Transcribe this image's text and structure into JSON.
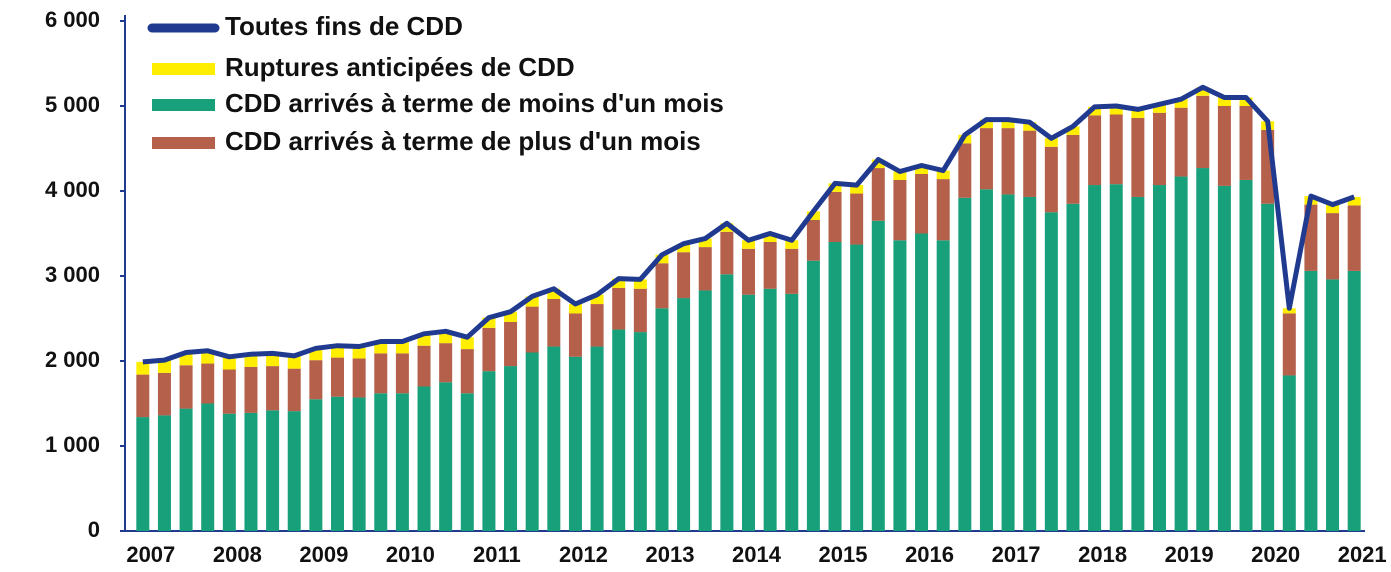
{
  "chart_data": {
    "type": "bar",
    "stacked": true,
    "categories": [
      "2007",
      null,
      null,
      null,
      "2008",
      null,
      null,
      null,
      "2009",
      null,
      null,
      null,
      "2010",
      null,
      null,
      null,
      "2011",
      null,
      null,
      null,
      "2012",
      null,
      null,
      null,
      "2013",
      null,
      null,
      null,
      "2014",
      null,
      null,
      null,
      "2015",
      null,
      null,
      null,
      "2016",
      null,
      null,
      null,
      "2017",
      null,
      null,
      null,
      "2018",
      null,
      null,
      null,
      "2019",
      null,
      null,
      null,
      "2020",
      null,
      null,
      null,
      "2021"
    ],
    "series": [
      {
        "name": "Toutes fins de CDD",
        "type": "line",
        "color": "#1f3a8f",
        "values": [
          1990,
          2010,
          2100,
          2120,
          2050,
          2080,
          2090,
          2060,
          2150,
          2180,
          2170,
          2230,
          2230,
          2320,
          2350,
          2280,
          2510,
          2580,
          2760,
          2850,
          2670,
          2780,
          2970,
          2960,
          3250,
          3380,
          3440,
          3620,
          3420,
          3500,
          3420,
          3760,
          4090,
          4070,
          4370,
          4230,
          4300,
          4240,
          4660,
          4840,
          4840,
          4810,
          4620,
          4760,
          4990,
          5000,
          4960,
          5020,
          5080,
          5220,
          5100,
          5100,
          4820,
          2620,
          3940,
          3840,
          3930
        ]
      },
      {
        "name": "Ruptures anticipées de CDD",
        "type": "bar",
        "color": "#ffee00",
        "values": [
          150,
          150,
          150,
          150,
          150,
          150,
          150,
          150,
          140,
          140,
          140,
          140,
          140,
          140,
          140,
          140,
          120,
          120,
          120,
          120,
          110,
          110,
          110,
          110,
          100,
          100,
          100,
          100,
          100,
          100,
          100,
          100,
          100,
          100,
          100,
          100,
          100,
          100,
          100,
          100,
          100,
          100,
          100,
          100,
          100,
          100,
          100,
          100,
          100,
          100,
          100,
          100,
          100,
          60,
          100,
          100,
          100
        ]
      },
      {
        "name": "CDD arrivés à terme de moins d'un mois",
        "type": "bar",
        "color": "#17a07a",
        "values": [
          1340,
          1360,
          1440,
          1500,
          1380,
          1390,
          1420,
          1410,
          1550,
          1580,
          1570,
          1620,
          1620,
          1700,
          1750,
          1620,
          1880,
          1940,
          2100,
          2170,
          2050,
          2170,
          2370,
          2340,
          2620,
          2740,
          2830,
          3020,
          2780,
          2850,
          2790,
          3180,
          3400,
          3370,
          3650,
          3420,
          3500,
          3420,
          3920,
          4020,
          3960,
          3930,
          3750,
          3850,
          4070,
          4080,
          3930,
          4070,
          4170,
          4270,
          4060,
          4130,
          3850,
          1830,
          3060,
          2960,
          3060
        ]
      },
      {
        "name": "CDD arrivés à terme de plus d'un mois",
        "type": "bar",
        "color": "#b5604a",
        "values": [
          500,
          500,
          510,
          470,
          520,
          540,
          520,
          500,
          460,
          460,
          460,
          470,
          470,
          480,
          460,
          520,
          510,
          520,
          540,
          560,
          510,
          500,
          490,
          510,
          530,
          540,
          510,
          500,
          540,
          550,
          530,
          480,
          590,
          600,
          620,
          710,
          700,
          720,
          640,
          720,
          780,
          780,
          770,
          810,
          820,
          820,
          930,
          850,
          810,
          850,
          940,
          870,
          870,
          730,
          780,
          780,
          770
        ]
      }
    ],
    "stack_order": [
      2,
      3,
      1
    ],
    "ylim": [
      0,
      6000
    ],
    "yticks": [
      0,
      {
        "value": 1000,
        "label": "1 000"
      },
      {
        "value": 2000,
        "label": "2 000"
      },
      {
        "value": 3000,
        "label": "3 000"
      },
      {
        "value": 4000,
        "label": "4 000"
      },
      {
        "value": 5000,
        "label": "5 000"
      },
      {
        "value": 6000,
        "label": "6 000"
      }
    ],
    "legend": "top-left"
  }
}
